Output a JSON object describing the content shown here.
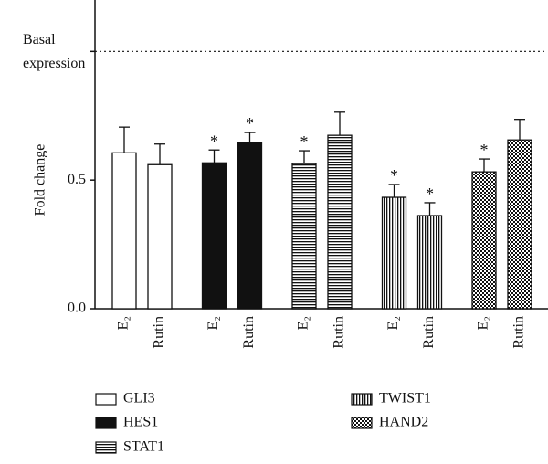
{
  "chart_data": {
    "type": "bar",
    "y_label": "Fold change",
    "categories": [
      "E₂",
      "Rutin"
    ],
    "ylim": [
      0,
      1.2
    ],
    "yticks": [
      {
        "value": 0,
        "label": "0.0"
      },
      0.5
    ],
    "reference_line": {
      "value": 1,
      "text": [
        "Basal",
        "expression"
      ],
      "style": "dotted"
    },
    "series": [
      {
        "name": "GLI3",
        "pattern": "white",
        "values": [
          0.606,
          0.56
        ],
        "errors": [
          0.1,
          0.08
        ],
        "significance": [
          null,
          null
        ]
      },
      {
        "name": "HES1",
        "pattern": "black",
        "values": [
          0.567,
          0.645
        ],
        "errors": [
          0.05,
          0.04
        ],
        "significance": [
          "*",
          "*"
        ]
      },
      {
        "name": "STAT1",
        "pattern": "horizontal",
        "values": [
          0.564,
          0.674
        ],
        "errors": [
          0.05,
          0.09
        ],
        "significance": [
          "*",
          null
        ]
      },
      {
        "name": "TWIST1",
        "pattern": "vertical",
        "values": [
          0.433,
          0.362
        ],
        "errors": [
          0.05,
          0.05
        ],
        "significance": [
          "*",
          "*"
        ]
      },
      {
        "name": "HAND2",
        "pattern": "checker",
        "values": [
          0.532,
          0.656
        ],
        "errors": [
          0.05,
          0.08
        ],
        "significance": [
          "*",
          null
        ]
      }
    ]
  }
}
